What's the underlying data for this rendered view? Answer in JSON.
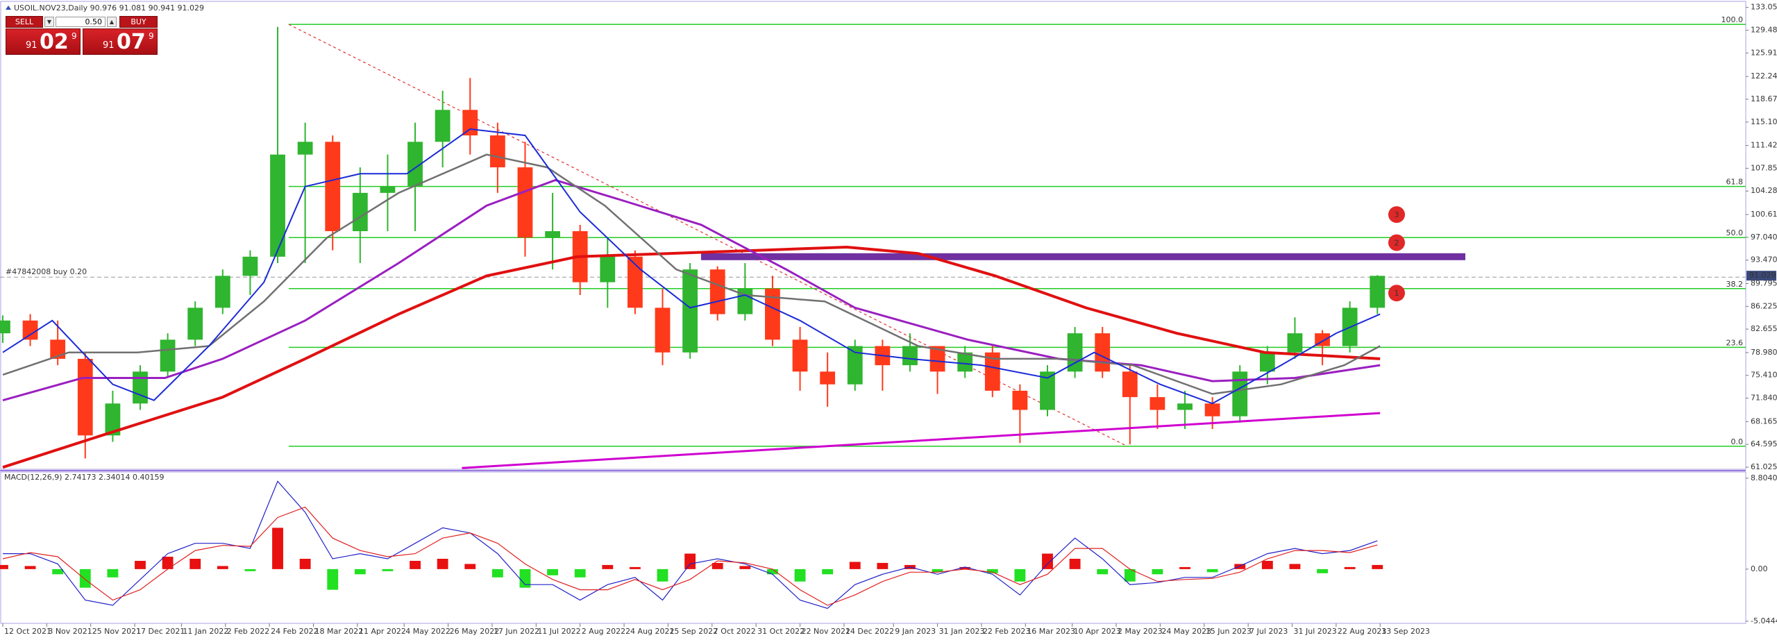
{
  "trade_panel": {
    "sell": "SELL",
    "buy": "BUY",
    "volume": "0.50",
    "sell_price": {
      "big": "91",
      "mid": "02",
      "sup": "9"
    },
    "buy_price": {
      "big": "91",
      "mid": "07",
      "sup": "9"
    }
  },
  "chart_data": [
    {
      "type": "candlestick",
      "title": "USOIL.NOV23,Daily  90.976 91.081 90.941 91.029",
      "x": [
        "2021-10-12",
        "2021-10-26",
        "2021-11-09",
        "2021-11-23",
        "2021-12-07",
        "2021-12-21",
        "2022-01-04",
        "2022-01-18",
        "2022-02-01",
        "2022-02-15",
        "2022-03-01",
        "2022-03-15",
        "2022-03-29",
        "2022-04-12",
        "2022-04-26",
        "2022-05-10",
        "2022-05-24",
        "2022-06-07",
        "2022-06-21",
        "2022-07-05",
        "2022-07-19",
        "2022-08-02",
        "2022-08-16",
        "2022-08-30",
        "2022-09-13",
        "2022-09-27",
        "2022-10-11",
        "2022-10-25",
        "2022-11-08",
        "2022-11-22",
        "2022-12-06",
        "2022-12-20",
        "2023-01-03",
        "2023-01-17",
        "2023-01-31",
        "2023-02-14",
        "2023-02-28",
        "2023-03-14",
        "2023-03-28",
        "2023-04-11",
        "2023-04-25",
        "2023-05-09",
        "2023-05-23",
        "2023-06-06",
        "2023-06-20",
        "2023-07-04",
        "2023-07-18",
        "2023-08-01",
        "2023-08-15",
        "2023-08-29",
        "2023-09-12"
      ],
      "open": [
        82,
        84,
        81,
        78,
        66,
        71,
        76,
        81,
        86,
        91,
        94,
        110,
        112,
        98,
        104,
        105,
        112,
        117,
        113,
        108,
        97,
        98,
        90,
        94,
        86,
        79,
        92,
        85,
        89,
        81,
        76,
        74,
        80,
        77,
        80,
        76,
        79,
        73,
        70,
        76,
        82,
        76,
        72,
        70,
        71,
        69,
        76,
        79,
        82,
        80,
        86
      ],
      "high": [
        84.8,
        85,
        84,
        79,
        73,
        77,
        82,
        87,
        92,
        95,
        130,
        115,
        113,
        108,
        110,
        115,
        120,
        122,
        115,
        112,
        104,
        99,
        97,
        95,
        89,
        93,
        92.5,
        93,
        91,
        83,
        79,
        81,
        81,
        82,
        80,
        80,
        80,
        74,
        77,
        83,
        83,
        77,
        74,
        73,
        72,
        77,
        80,
        84.5,
        82.5,
        87,
        91.1
      ],
      "low": [
        80.5,
        80,
        77,
        62.4,
        65,
        70,
        75,
        80,
        85,
        88,
        93,
        93,
        95,
        93,
        98,
        98,
        108,
        110,
        104,
        94,
        92,
        88,
        86,
        85,
        77,
        78,
        84,
        84,
        80,
        73,
        70.5,
        73,
        73,
        76,
        72.5,
        75,
        72,
        64.8,
        69,
        75,
        75,
        64.6,
        67,
        67,
        67,
        68,
        74,
        78,
        77,
        79,
        85
      ],
      "close": [
        84,
        81,
        78,
        66,
        71,
        76,
        81,
        86,
        91,
        94,
        110,
        112,
        98,
        104,
        105,
        112,
        117,
        113,
        108,
        97,
        98,
        90,
        94,
        86,
        79,
        92,
        85,
        89,
        81,
        76,
        74,
        80,
        77,
        80,
        76,
        79,
        73,
        70,
        76,
        82,
        76,
        72,
        70,
        71,
        69,
        76,
        79,
        82,
        80,
        86,
        91.0
      ],
      "up_color": "#2fb52f",
      "down_color": "#ff3a1a",
      "xlim": [
        "2021-10-11",
        "2024-03-18"
      ],
      "xticks": [
        {
          "value": "2021-10-12",
          "label": "12 Oct 2021"
        },
        {
          "value": "2021-11-03",
          "label": "3 Nov 2021"
        },
        {
          "value": "2021-11-25",
          "label": "25 Nov 2021"
        },
        {
          "value": "2021-12-17",
          "label": "17 Dec 2021"
        },
        {
          "value": "2022-01-11",
          "label": "11 Jan 2022"
        },
        {
          "value": "2022-02-02",
          "label": "2 Feb 2022"
        },
        {
          "value": "2022-02-24",
          "label": "24 Feb 2022"
        },
        {
          "value": "2022-03-18",
          "label": "18 Mar 2022"
        },
        {
          "value": "2022-04-11",
          "label": "11 Apr 2022"
        },
        {
          "value": "2022-05-04",
          "label": "4 May 2022"
        },
        {
          "value": "2022-05-26",
          "label": "26 May 2022"
        },
        {
          "value": "2022-06-17",
          "label": "17 Jun 2022"
        },
        {
          "value": "2022-07-11",
          "label": "11 Jul 2022"
        },
        {
          "value": "2022-08-02",
          "label": "2 Aug 2022"
        },
        {
          "value": "2022-08-24",
          "label": "24 Aug 2022"
        },
        {
          "value": "2022-09-15",
          "label": "15 Sep 2022"
        },
        {
          "value": "2022-10-07",
          "label": "7 Oct 2022"
        },
        {
          "value": "2022-10-31",
          "label": "31 Oct 2022"
        },
        {
          "value": "2022-11-22",
          "label": "22 Nov 2022"
        },
        {
          "value": "2022-12-14",
          "label": "14 Dec 2022"
        },
        {
          "value": "2023-01-09",
          "label": "9 Jan 2023"
        },
        {
          "value": "2023-01-31",
          "label": "31 Jan 2023"
        },
        {
          "value": "2023-02-22",
          "label": "22 Feb 2023"
        },
        {
          "value": "2023-03-16",
          "label": "16 Mar 2023"
        },
        {
          "value": "2023-04-10",
          "label": "10 Apr 2023"
        },
        {
          "value": "2023-05-02",
          "label": "2 May 2023"
        },
        {
          "value": "2023-05-24",
          "label": "24 May 2023"
        },
        {
          "value": "2023-06-15",
          "label": "15 Jun 2023"
        },
        {
          "value": "2023-07-07",
          "label": "7 Jul 2023"
        },
        {
          "value": "2023-07-31",
          "label": "31 Jul 2023"
        },
        {
          "value": "2023-08-22",
          "label": "22 Aug 2023"
        },
        {
          "value": "2023-09-13",
          "label": "13 Sep 2023"
        }
      ],
      "ylim": [
        60.7,
        134.0
      ],
      "yticks": [
        133.055,
        129.485,
        125.915,
        {
          "value": 122.24,
          "label": "122.240"
        },
        {
          "value": 118.67,
          "label": "118.670"
        },
        {
          "value": 115.1,
          "label": "115.100"
        },
        111.425,
        107.855,
        104.285,
        {
          "value": 100.61,
          "label": "100.610"
        },
        {
          "value": 97.04,
          "label": "97.040"
        },
        {
          "value": 93.47,
          "label": "93.470"
        },
        89.795,
        86.225,
        82.655,
        {
          "value": 78.98,
          "label": "78.980"
        },
        {
          "value": 75.41,
          "label": "75.410"
        },
        {
          "value": 71.84,
          "label": "71.840"
        },
        68.165,
        64.595,
        61.025
      ],
      "lines": [
        {
          "color": "#d000d0",
          "width": 3,
          "x": [
            "2022-06-02",
            "2023-09-13"
          ],
          "values": [
            60.9,
            69.5
          ]
        },
        {
          "color": "#e01010",
          "width": 4,
          "x": [
            "2021-10-12",
            "2021-12-01",
            "2022-02-01",
            "2022-03-15",
            "2022-05-01",
            "2022-06-15",
            "2022-08-01",
            "2022-09-15",
            "2022-11-01",
            "2022-12-15",
            "2023-01-20",
            "2023-03-01",
            "2023-04-15",
            "2023-06-01",
            "2023-07-15",
            "2023-08-15",
            "2023-09-13"
          ],
          "values": [
            61,
            66,
            72,
            78,
            85,
            91,
            94,
            94.5,
            95,
            95.5,
            94.5,
            91,
            86,
            82,
            79,
            78.5,
            78
          ]
        },
        {
          "color": "#9a1fc0",
          "width": 3,
          "x": [
            "2021-10-12",
            "2021-11-20",
            "2022-01-01",
            "2022-02-01",
            "2022-03-15",
            "2022-04-30",
            "2022-06-15",
            "2022-07-20",
            "2022-08-20",
            "2022-10-01",
            "2022-11-15",
            "2022-12-20",
            "2023-02-15",
            "2023-04-01",
            "2023-05-15",
            "2023-06-20",
            "2023-08-01",
            "2023-09-13"
          ],
          "values": [
            71.5,
            75,
            75,
            78,
            84,
            93,
            102,
            106,
            103,
            99,
            92,
            86,
            81,
            78,
            77,
            74.5,
            75,
            77
          ]
        },
        {
          "color": "#707070",
          "width": 2.5,
          "x": [
            "2021-10-12",
            "2021-11-15",
            "2021-12-20",
            "2022-01-25",
            "2022-02-22",
            "2022-03-25",
            "2022-05-01",
            "2022-06-15",
            "2022-07-15",
            "2022-08-15",
            "2022-09-20",
            "2022-10-25",
            "2022-12-05",
            "2023-01-20",
            "2023-03-01",
            "2023-04-01",
            "2023-05-10",
            "2023-06-20",
            "2023-07-25",
            "2023-08-25",
            "2023-09-13"
          ],
          "values": [
            75.5,
            79,
            79,
            80,
            87,
            97,
            104,
            110,
            108,
            102,
            92,
            88,
            87,
            80,
            78,
            78,
            77,
            72.5,
            74,
            77,
            80
          ]
        },
        {
          "color": "#1a2ad8",
          "width": 2,
          "x": [
            "2021-10-12",
            "2021-11-05",
            "2021-12-07",
            "2021-12-28",
            "2022-01-25",
            "2022-02-22",
            "2022-03-15",
            "2022-04-12",
            "2022-05-05",
            "2022-06-07",
            "2022-07-05",
            "2022-08-02",
            "2022-09-01",
            "2022-09-27",
            "2022-10-25",
            "2022-11-22",
            "2022-12-20",
            "2023-01-17",
            "2023-02-22",
            "2023-03-28",
            "2023-04-20",
            "2023-05-24",
            "2023-06-20",
            "2023-07-25",
            "2023-08-22",
            "2023-09-13"
          ],
          "values": [
            79,
            84,
            74,
            71.5,
            80,
            90,
            105,
            107,
            107,
            114,
            113,
            101,
            92,
            86,
            88,
            84,
            79,
            78,
            77,
            75,
            79,
            74,
            71,
            77,
            82,
            85
          ]
        }
      ],
      "levels_start": "2022-03-07",
      "level_color": "#22cc22",
      "levels": [
        {
          "value": 130.4,
          "label": "100.0"
        },
        {
          "value": 105.0,
          "label": "61.8"
        },
        {
          "value": 97.0,
          "label": "50.0"
        },
        {
          "value": 89.0,
          "label": "38.2"
        },
        {
          "value": 79.8,
          "label": "23.6"
        },
        {
          "value": 64.3,
          "label": "0.0"
        }
      ],
      "trendline": {
        "color": "#e03030",
        "x": [
          "2022-03-07",
          "2023-05-08"
        ],
        "values": [
          130.4,
          64.3
        ]
      },
      "zone": {
        "color": "#7030a0",
        "x": [
          "2022-10-03",
          "2023-10-26"
        ],
        "value": 94.0
      },
      "order_line": {
        "value": 90.8,
        "label": "#47842008 buy 0.20"
      },
      "current_price": 91.029,
      "markers": [
        {
          "label": "1",
          "x": "2023-09-21",
          "value": 88.3
        },
        {
          "label": "2",
          "x": "2023-09-21",
          "value": 96.2
        },
        {
          "label": "3",
          "x": "2023-09-21",
          "value": 100.6
        }
      ]
    },
    {
      "type": "macd",
      "title": "MACD(12,26,9) 2.74173 2.34014 0.40159",
      "ylim": [
        -5.25,
        9.4
      ],
      "yticks": [
        {
          "value": 8.804,
          "label": "8.80400"
        },
        {
          "value": 0,
          "label": "0.00"
        },
        -5.04444
      ],
      "histogram": [
        0.4,
        0.3,
        -0.5,
        -1.8,
        -0.8,
        0.8,
        1.2,
        1.0,
        0.3,
        -0.2,
        4,
        1,
        -2,
        -0.5,
        -0.2,
        0.8,
        1.0,
        0.5,
        -0.8,
        -1.8,
        -0.6,
        -0.8,
        0.4,
        0.2,
        -1.2,
        1.5,
        0.6,
        0.3,
        -0.5,
        -1.2,
        -0.5,
        0.7,
        0.6,
        0.4,
        -0.3,
        0.2,
        -0.4,
        -1.2,
        1.5,
        1.0,
        -0.5,
        -1.2,
        -0.5,
        0.2,
        -0.3,
        0.5,
        0.8,
        0.5,
        -0.4,
        0.2,
        0.40159
      ],
      "macd": [
        1.5,
        1.5,
        0.5,
        -3,
        -3.5,
        -1,
        1.5,
        2.5,
        2.5,
        2.0,
        8.5,
        5.5,
        1,
        1.5,
        1.0,
        2.5,
        4.0,
        3.5,
        1.5,
        -1.5,
        -1.5,
        -3,
        -1.5,
        -0.8,
        -3,
        0.5,
        1.0,
        0.5,
        -0.5,
        -3,
        -3.8,
        -1.5,
        -0.5,
        0.2,
        -0.5,
        0.2,
        -0.5,
        -2.5,
        0.5,
        3,
        1.0,
        -1.5,
        -1.3,
        -0.8,
        -0.8,
        0.3,
        1.5,
        2,
        1.5,
        1.8,
        2.74173
      ],
      "signal": [
        1.0,
        1.6,
        1.2,
        -1,
        -3,
        -2,
        0,
        1.8,
        2.3,
        2.2,
        5,
        6,
        3,
        1.8,
        1.2,
        1.5,
        3.0,
        3.5,
        2.5,
        0.5,
        -1,
        -2,
        -2,
        -1,
        -2,
        -1,
        0.8,
        0.6,
        0,
        -2,
        -3.5,
        -2.5,
        -1.2,
        -0.3,
        -0.3,
        0,
        -0.3,
        -1.5,
        -0.5,
        2,
        2,
        0,
        -1.2,
        -1.0,
        -0.9,
        -0.3,
        1,
        1.8,
        1.8,
        1.6,
        2.34014
      ],
      "up_color": "#e81010",
      "down_color": "#22e022",
      "macd_color": "#2020c8",
      "signal_color": "#e02020"
    }
  ]
}
